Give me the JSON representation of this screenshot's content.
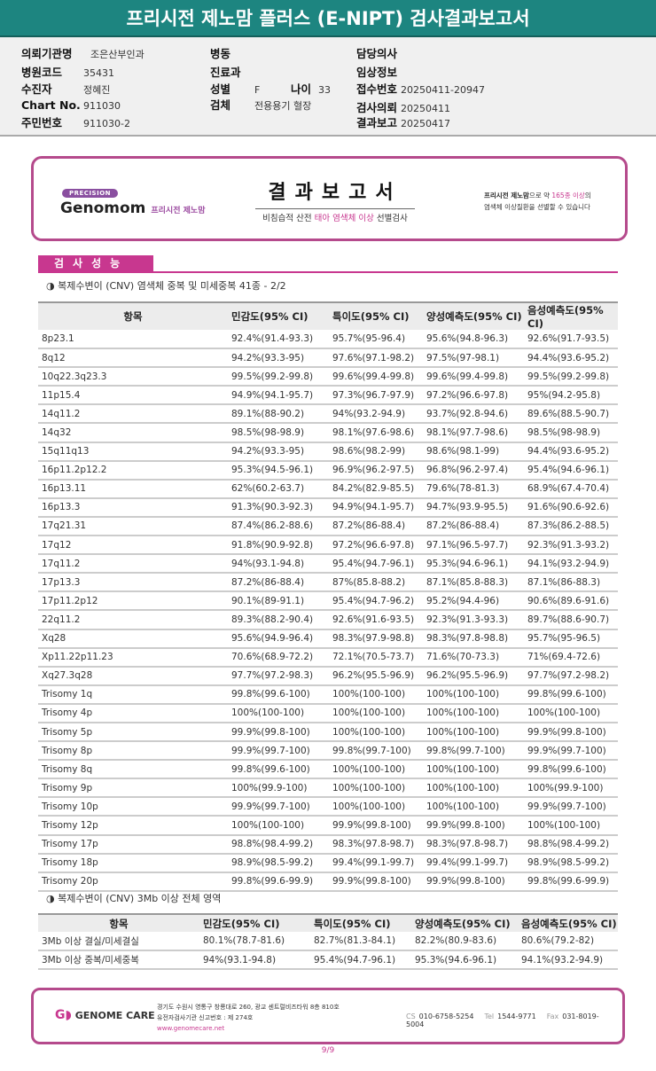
{
  "title": "프리시전 제노맘 플러스 (E-NIPT) 검사결과보고서",
  "info": {
    "hospital_label": "의뢰기관명",
    "hospital": "조은산부인과",
    "code_label": "병원코드",
    "code": "35431",
    "patient_label": "수진자",
    "patient": "정혜진",
    "chart_label": "Chart No.",
    "chart": "911030",
    "id_label": "주민번호",
    "id": "911030-2",
    "ward_label": "병동",
    "dept_label": "진료과",
    "sex_label": "성별",
    "sex": "F",
    "age_label": "나이",
    "age": "33",
    "specimen_label": "검체",
    "specimen": "전용용기 혈장",
    "doctor_label": "담당의사",
    "clinical_label": "임상정보",
    "receipt_label": "접수번호",
    "receipt": "20250411-20947",
    "request_label": "검사의뢰",
    "request": "20250411",
    "report_label": "결과보고",
    "report": "20250417"
  },
  "report_header": {
    "badge": "PRECISION",
    "brand": "Genomom",
    "brand_kr": "프리시전 제노맘",
    "title": "결과보고서",
    "subtitle_pre": "비침습적 산전 ",
    "subtitle_hl": "태아 염색체 이상",
    "subtitle_post": " 선별검사",
    "note_b": "프리시전 제노맘",
    "note_1": "으로 약 ",
    "note_hl": "165종 이상",
    "note_2": "의",
    "note_line2": "염색체 이상질환을 선별할 수 있습니다"
  },
  "section_tab": "검사성능",
  "table1": {
    "subtitle": "◑ 복제수변이 (CNV) 염색체 중복 및 미세중복 41종 - 2/2",
    "headers": [
      "항목",
      "민감도(95% CI)",
      "특이도(95% CI)",
      "양성예측도(95% CI)",
      "음성예측도(95% CI)"
    ],
    "rows": [
      [
        "8p23.1",
        "92.4%(91.4-93.3)",
        "95.7%(95-96.4)",
        "95.6%(94.8-96.3)",
        "92.6%(91.7-93.5)"
      ],
      [
        "8q12",
        "94.2%(93.3-95)",
        "97.6%(97.1-98.2)",
        "97.5%(97-98.1)",
        "94.4%(93.6-95.2)"
      ],
      [
        "10q22.3q23.3",
        "99.5%(99.2-99.8)",
        "99.6%(99.4-99.8)",
        "99.6%(99.4-99.8)",
        "99.5%(99.2-99.8)"
      ],
      [
        "11p15.4",
        "94.9%(94.1-95.7)",
        "97.3%(96.7-97.9)",
        "97.2%(96.6-97.8)",
        "95%(94.2-95.8)"
      ],
      [
        "14q11.2",
        "89.1%(88-90.2)",
        "94%(93.2-94.9)",
        "93.7%(92.8-94.6)",
        "89.6%(88.5-90.7)"
      ],
      [
        "14q32",
        "98.5%(98-98.9)",
        "98.1%(97.6-98.6)",
        "98.1%(97.7-98.6)",
        "98.5%(98-98.9)"
      ],
      [
        "15q11q13",
        "94.2%(93.3-95)",
        "98.6%(98.2-99)",
        "98.6%(98.1-99)",
        "94.4%(93.6-95.2)"
      ],
      [
        "16p11.2p12.2",
        "95.3%(94.5-96.1)",
        "96.9%(96.2-97.5)",
        "96.8%(96.2-97.4)",
        "95.4%(94.6-96.1)"
      ],
      [
        "16p13.11",
        "62%(60.2-63.7)",
        "84.2%(82.9-85.5)",
        "79.6%(78-81.3)",
        "68.9%(67.4-70.4)"
      ],
      [
        "16p13.3",
        "91.3%(90.3-92.3)",
        "94.9%(94.1-95.7)",
        "94.7%(93.9-95.5)",
        "91.6%(90.6-92.6)"
      ],
      [
        "17q21.31",
        "87.4%(86.2-88.6)",
        "87.2%(86-88.4)",
        "87.2%(86-88.4)",
        "87.3%(86.2-88.5)"
      ],
      [
        "17q12",
        "91.8%(90.9-92.8)",
        "97.2%(96.6-97.8)",
        "97.1%(96.5-97.7)",
        "92.3%(91.3-93.2)"
      ],
      [
        "17q11.2",
        "94%(93.1-94.8)",
        "95.4%(94.7-96.1)",
        "95.3%(94.6-96.1)",
        "94.1%(93.2-94.9)"
      ],
      [
        "17p13.3",
        "87.2%(86-88.4)",
        "87%(85.8-88.2)",
        "87.1%(85.8-88.3)",
        "87.1%(86-88.3)"
      ],
      [
        "17p11.2p12",
        "90.1%(89-91.1)",
        "95.4%(94.7-96.2)",
        "95.2%(94.4-96)",
        "90.6%(89.6-91.6)"
      ],
      [
        "22q11.2",
        "89.3%(88.2-90.4)",
        "92.6%(91.6-93.5)",
        "92.3%(91.3-93.3)",
        "89.7%(88.6-90.7)"
      ],
      [
        "Xq28",
        "95.6%(94.9-96.4)",
        "98.3%(97.9-98.8)",
        "98.3%(97.8-98.8)",
        "95.7%(95-96.5)"
      ],
      [
        "Xp11.22p11.23",
        "70.6%(68.9-72.2)",
        "72.1%(70.5-73.7)",
        "71.6%(70-73.3)",
        "71%(69.4-72.6)"
      ],
      [
        "Xq27.3q28",
        "97.7%(97.2-98.3)",
        "96.2%(95.5-96.9)",
        "96.2%(95.5-96.9)",
        "97.7%(97.2-98.2)"
      ],
      [
        "Trisomy 1q",
        "99.8%(99.6-100)",
        "100%(100-100)",
        "100%(100-100)",
        "99.8%(99.6-100)"
      ],
      [
        "Trisomy 4p",
        "100%(100-100)",
        "100%(100-100)",
        "100%(100-100)",
        "100%(100-100)"
      ],
      [
        "Trisomy 5p",
        "99.9%(99.8-100)",
        "100%(100-100)",
        "100%(100-100)",
        "99.9%(99.8-100)"
      ],
      [
        "Trisomy 8p",
        "99.9%(99.7-100)",
        "99.8%(99.7-100)",
        "99.8%(99.7-100)",
        "99.9%(99.7-100)"
      ],
      [
        "Trisomy 8q",
        "99.8%(99.6-100)",
        "100%(100-100)",
        "100%(100-100)",
        "99.8%(99.6-100)"
      ],
      [
        "Trisomy 9p",
        "100%(99.9-100)",
        "100%(100-100)",
        "100%(100-100)",
        "100%(99.9-100)"
      ],
      [
        "Trisomy 10p",
        "99.9%(99.7-100)",
        "100%(100-100)",
        "100%(100-100)",
        "99.9%(99.7-100)"
      ],
      [
        "Trisomy 12p",
        "100%(100-100)",
        "99.9%(99.8-100)",
        "99.9%(99.8-100)",
        "100%(100-100)"
      ],
      [
        "Trisomy 17p",
        "98.8%(98.4-99.2)",
        "98.3%(97.8-98.7)",
        "98.3%(97.8-98.7)",
        "98.8%(98.4-99.2)"
      ],
      [
        "Trisomy 18p",
        "98.9%(98.5-99.2)",
        "99.4%(99.1-99.7)",
        "99.4%(99.1-99.7)",
        "98.9%(98.5-99.2)"
      ],
      [
        "Trisomy 20p",
        "99.8%(99.6-99.9)",
        "99.9%(99.8-100)",
        "99.9%(99.8-100)",
        "99.8%(99.6-99.9)"
      ]
    ]
  },
  "table2": {
    "subtitle": "◑ 복제수변이 (CNV) 3Mb 이상 전체 영역",
    "headers": [
      "항목",
      "민감도(95% CI)",
      "특이도(95% CI)",
      "양성예측도(95% CI)",
      "음성예측도(95% CI)"
    ],
    "rows": [
      [
        "3Mb 이상 결실/미세결실",
        "80.1%(78.7-81.6)",
        "82.7%(81.3-84.1)",
        "82.2%(80.9-83.6)",
        "80.6%(79.2-82)"
      ],
      [
        "3Mb 이상 중복/미세중복",
        "94%(93.1-94.8)",
        "95.4%(94.7-96.1)",
        "95.3%(94.6-96.1)",
        "94.1%(93.2-94.9)"
      ]
    ]
  },
  "footer": {
    "logo": "GENOME CARE",
    "address": "경기도 수원시 영통구 창룡대로 260, 광교 센트럴비즈타워 8층 810호",
    "license": "유전자검사기관 신고번호 : 제 274호",
    "website": "www.genomecare.net",
    "cs_label": "CS",
    "cs": "010-6758-5254",
    "tel_label": "Tel",
    "tel": "1544-9771",
    "fax_label": "Fax",
    "fax": "031-8019-5004"
  },
  "page": "9/9",
  "colors": {
    "teal": "#1d8580",
    "magenta": "#c8378f",
    "border": "#b54a8c"
  }
}
